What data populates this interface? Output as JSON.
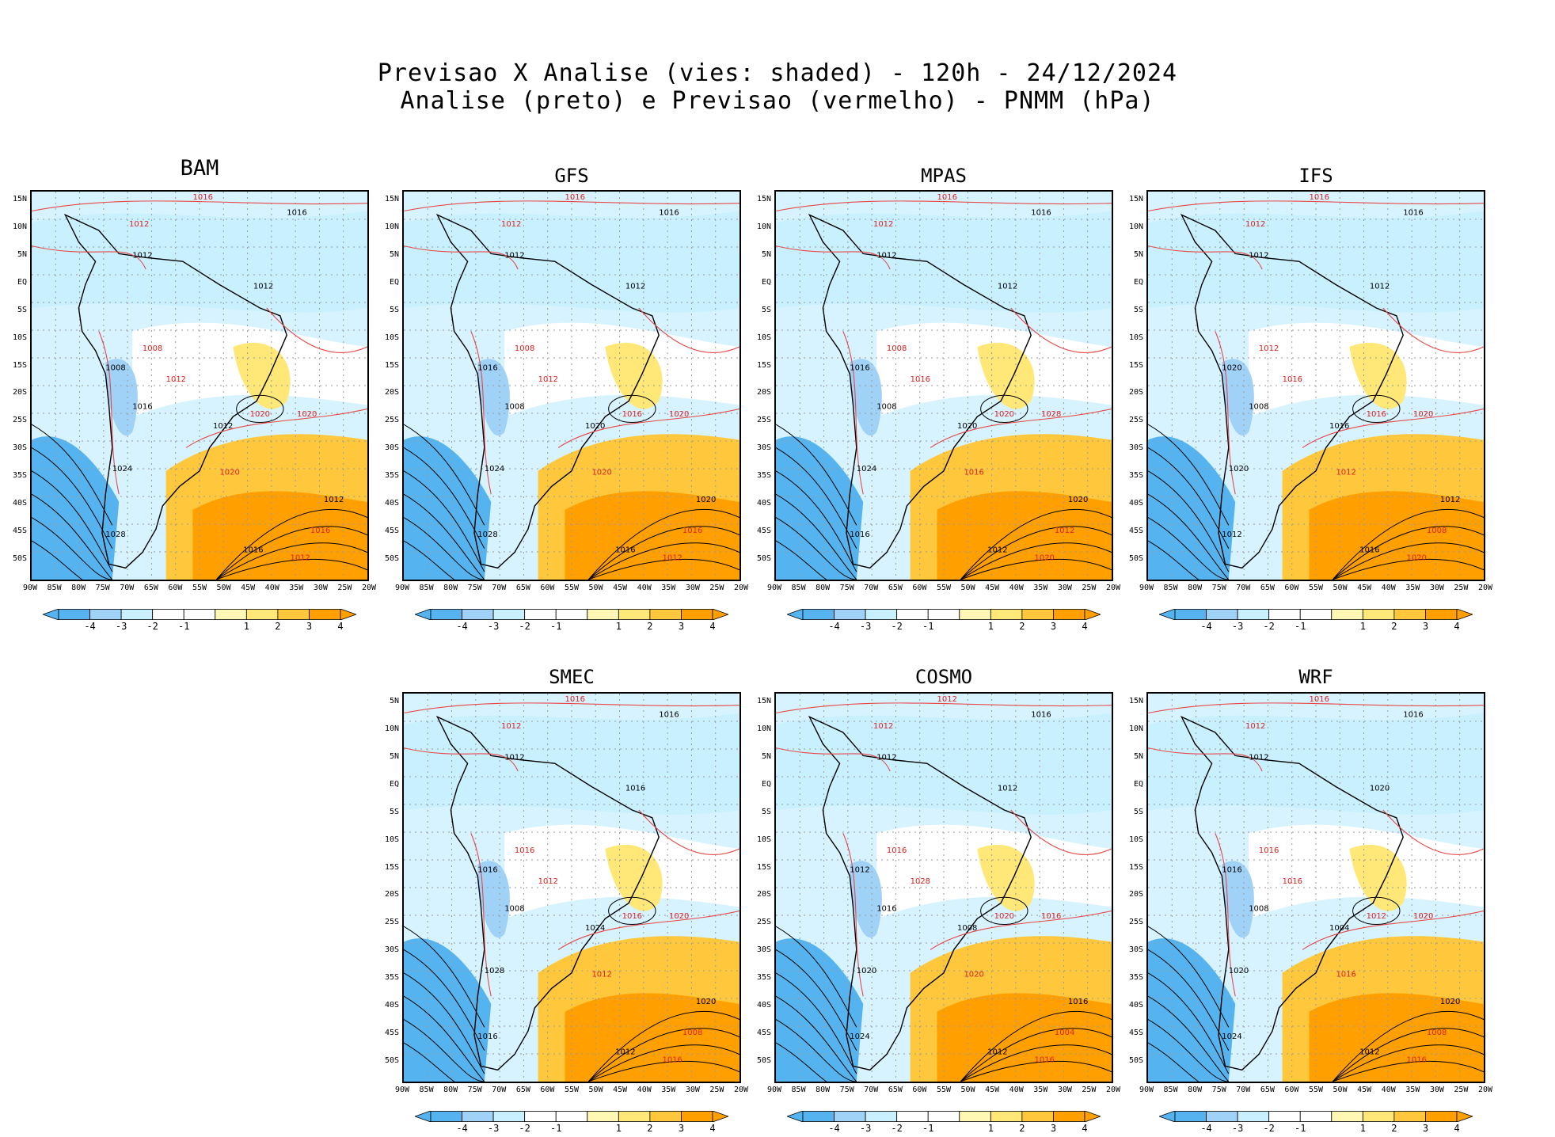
{
  "header": {
    "line1": "Previsao X Analise (vies: shaded) - 120h - 24/12/2024",
    "line2": "Analise (preto) e Previsao (vermelho) - PNMM (hPa)"
  },
  "axes": {
    "lat_labels_top": [
      "15N",
      "10N",
      "5N",
      "EQ",
      "5S",
      "10S",
      "15S",
      "20S",
      "25S",
      "30S",
      "35S",
      "40S",
      "45S",
      "50S"
    ],
    "lat_labels_smec": [
      "5N",
      "10N",
      "5N",
      "EQ",
      "5S",
      "10S",
      "15S",
      "20S",
      "25S",
      "30S",
      "35S",
      "40S",
      "45S",
      "50S"
    ],
    "lon_labels": [
      "90W",
      "85W",
      "80W",
      "75W",
      "70W",
      "65W",
      "60W",
      "55W",
      "50W",
      "45W",
      "40W",
      "35W",
      "30W",
      "25W",
      "20W"
    ]
  },
  "colorbar": {
    "labels": [
      "-4",
      "-3",
      "-2",
      "-1",
      "1",
      "2",
      "3",
      "4"
    ],
    "colors": [
      "#55b4f0",
      "#a0d2f8",
      "#c8f0ff",
      "#ffffff",
      "#fff8b4",
      "#ffe878",
      "#ffc83c",
      "#ffa000"
    ]
  },
  "panels": [
    {
      "id": "bam",
      "title": "BAM",
      "lat_set": "lat_labels_top",
      "isobars_black": [
        {
          "t": "1016"
        },
        {
          "t": "1012"
        },
        {
          "t": "1012"
        },
        {
          "t": "1008"
        },
        {
          "t": "1016"
        },
        {
          "t": "1012"
        },
        {
          "t": "1024"
        },
        {
          "t": "1028"
        },
        {
          "t": "1016"
        },
        {
          "t": "1012"
        }
      ],
      "isobars_red": [
        {
          "t": "1016"
        },
        {
          "t": "1012"
        },
        {
          "t": "1008"
        },
        {
          "t": "1012"
        },
        {
          "t": "1020"
        },
        {
          "t": "1020"
        },
        {
          "t": "1020"
        },
        {
          "t": "1016"
        },
        {
          "t": "1012"
        }
      ]
    },
    {
      "id": "gfs",
      "title": "GFS",
      "lat_set": "lat_labels_top",
      "isobars_black": [
        {
          "t": "1016"
        },
        {
          "t": "1012"
        },
        {
          "t": "1012"
        },
        {
          "t": "1016"
        },
        {
          "t": "1008"
        },
        {
          "t": "1020"
        },
        {
          "t": "1024"
        },
        {
          "t": "1028"
        },
        {
          "t": "1016"
        },
        {
          "t": "1020"
        }
      ],
      "isobars_red": [
        {
          "t": "1016"
        },
        {
          "t": "1012"
        },
        {
          "t": "1008"
        },
        {
          "t": "1012"
        },
        {
          "t": "1016"
        },
        {
          "t": "1020"
        },
        {
          "t": "1020"
        },
        {
          "t": "1016"
        },
        {
          "t": "1012"
        }
      ]
    },
    {
      "id": "mpas",
      "title": "MPAS",
      "lat_set": "lat_labels_top",
      "isobars_black": [
        {
          "t": "1016"
        },
        {
          "t": "1012"
        },
        {
          "t": "1012"
        },
        {
          "t": "1016"
        },
        {
          "t": "1008"
        },
        {
          "t": "1020"
        },
        {
          "t": "1024"
        },
        {
          "t": "1016"
        },
        {
          "t": "1012"
        },
        {
          "t": "1020"
        }
      ],
      "isobars_red": [
        {
          "t": "1016"
        },
        {
          "t": "1012"
        },
        {
          "t": "1008"
        },
        {
          "t": "1016"
        },
        {
          "t": "1020"
        },
        {
          "t": "1028"
        },
        {
          "t": "1016"
        },
        {
          "t": "1012"
        },
        {
          "t": "1020"
        }
      ]
    },
    {
      "id": "ifs",
      "title": "IFS",
      "lat_set": "lat_labels_top",
      "isobars_black": [
        {
          "t": "1016"
        },
        {
          "t": "1012"
        },
        {
          "t": "1012"
        },
        {
          "t": "1020"
        },
        {
          "t": "1008"
        },
        {
          "t": "1016"
        },
        {
          "t": "1020"
        },
        {
          "t": "1012"
        },
        {
          "t": "1016"
        },
        {
          "t": "1012"
        }
      ],
      "isobars_red": [
        {
          "t": "1016"
        },
        {
          "t": "1012"
        },
        {
          "t": "1012"
        },
        {
          "t": "1016"
        },
        {
          "t": "1016"
        },
        {
          "t": "1020"
        },
        {
          "t": "1012"
        },
        {
          "t": "1008"
        },
        {
          "t": "1020"
        }
      ]
    },
    {
      "id": "smec",
      "title": "SMEC",
      "lat_set": "lat_labels_smec",
      "isobars_black": [
        {
          "t": "1016"
        },
        {
          "t": "1012"
        },
        {
          "t": "1016"
        },
        {
          "t": "1016"
        },
        {
          "t": "1008"
        },
        {
          "t": "1024"
        },
        {
          "t": "1028"
        },
        {
          "t": "1016"
        },
        {
          "t": "1012"
        },
        {
          "t": "1020"
        }
      ],
      "isobars_red": [
        {
          "t": "1016"
        },
        {
          "t": "1012"
        },
        {
          "t": "1016"
        },
        {
          "t": "1012"
        },
        {
          "t": "1016"
        },
        {
          "t": "1020"
        },
        {
          "t": "1012"
        },
        {
          "t": "1008"
        },
        {
          "t": "1016"
        }
      ]
    },
    {
      "id": "cosmo",
      "title": "COSMO",
      "lat_set": "lat_labels_top",
      "isobars_black": [
        {
          "t": "1016"
        },
        {
          "t": "1012"
        },
        {
          "t": "1012"
        },
        {
          "t": "1012"
        },
        {
          "t": "1016"
        },
        {
          "t": "1008"
        },
        {
          "t": "1020"
        },
        {
          "t": "1024"
        },
        {
          "t": "1012"
        },
        {
          "t": "1016"
        }
      ],
      "isobars_red": [
        {
          "t": "1012"
        },
        {
          "t": "1012"
        },
        {
          "t": "1016"
        },
        {
          "t": "1028"
        },
        {
          "t": "1020"
        },
        {
          "t": "1016"
        },
        {
          "t": "1020"
        },
        {
          "t": "1004"
        },
        {
          "t": "1016"
        }
      ]
    },
    {
      "id": "wrf",
      "title": "WRF",
      "lat_set": "lat_labels_top",
      "isobars_black": [
        {
          "t": "1016"
        },
        {
          "t": "1012"
        },
        {
          "t": "1020"
        },
        {
          "t": "1016"
        },
        {
          "t": "1008"
        },
        {
          "t": "1004"
        },
        {
          "t": "1020"
        },
        {
          "t": "1024"
        },
        {
          "t": "1012"
        },
        {
          "t": "1020"
        }
      ],
      "isobars_red": [
        {
          "t": "1016"
        },
        {
          "t": "1012"
        },
        {
          "t": "1016"
        },
        {
          "t": "1016"
        },
        {
          "t": "1012"
        },
        {
          "t": "1020"
        },
        {
          "t": "1016"
        },
        {
          "t": "1008"
        },
        {
          "t": "1016"
        }
      ]
    }
  ]
}
